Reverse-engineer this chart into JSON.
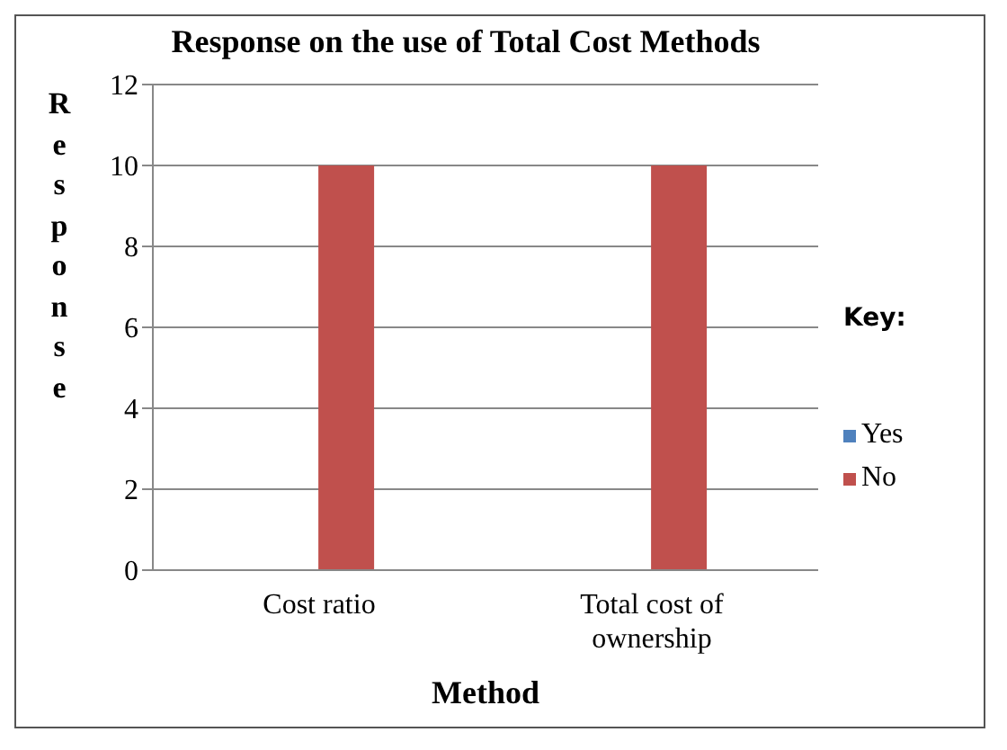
{
  "chart_data": {
    "type": "bar",
    "title": "Response on the use of Total Cost Methods",
    "xlabel": "Method",
    "ylabel": "Response",
    "legend_title": "Key:",
    "categories": [
      "Cost ratio",
      "Total cost of ownership"
    ],
    "series": [
      {
        "name": "Yes",
        "color": "#4f81bd",
        "values": [
          0,
          0
        ]
      },
      {
        "name": "No",
        "color": "#c0504d",
        "values": [
          10,
          10
        ]
      }
    ],
    "ylim": [
      0,
      12
    ],
    "yticks": [
      0,
      2,
      4,
      6,
      8,
      10,
      12
    ],
    "grid": "y",
    "legend": "right"
  }
}
